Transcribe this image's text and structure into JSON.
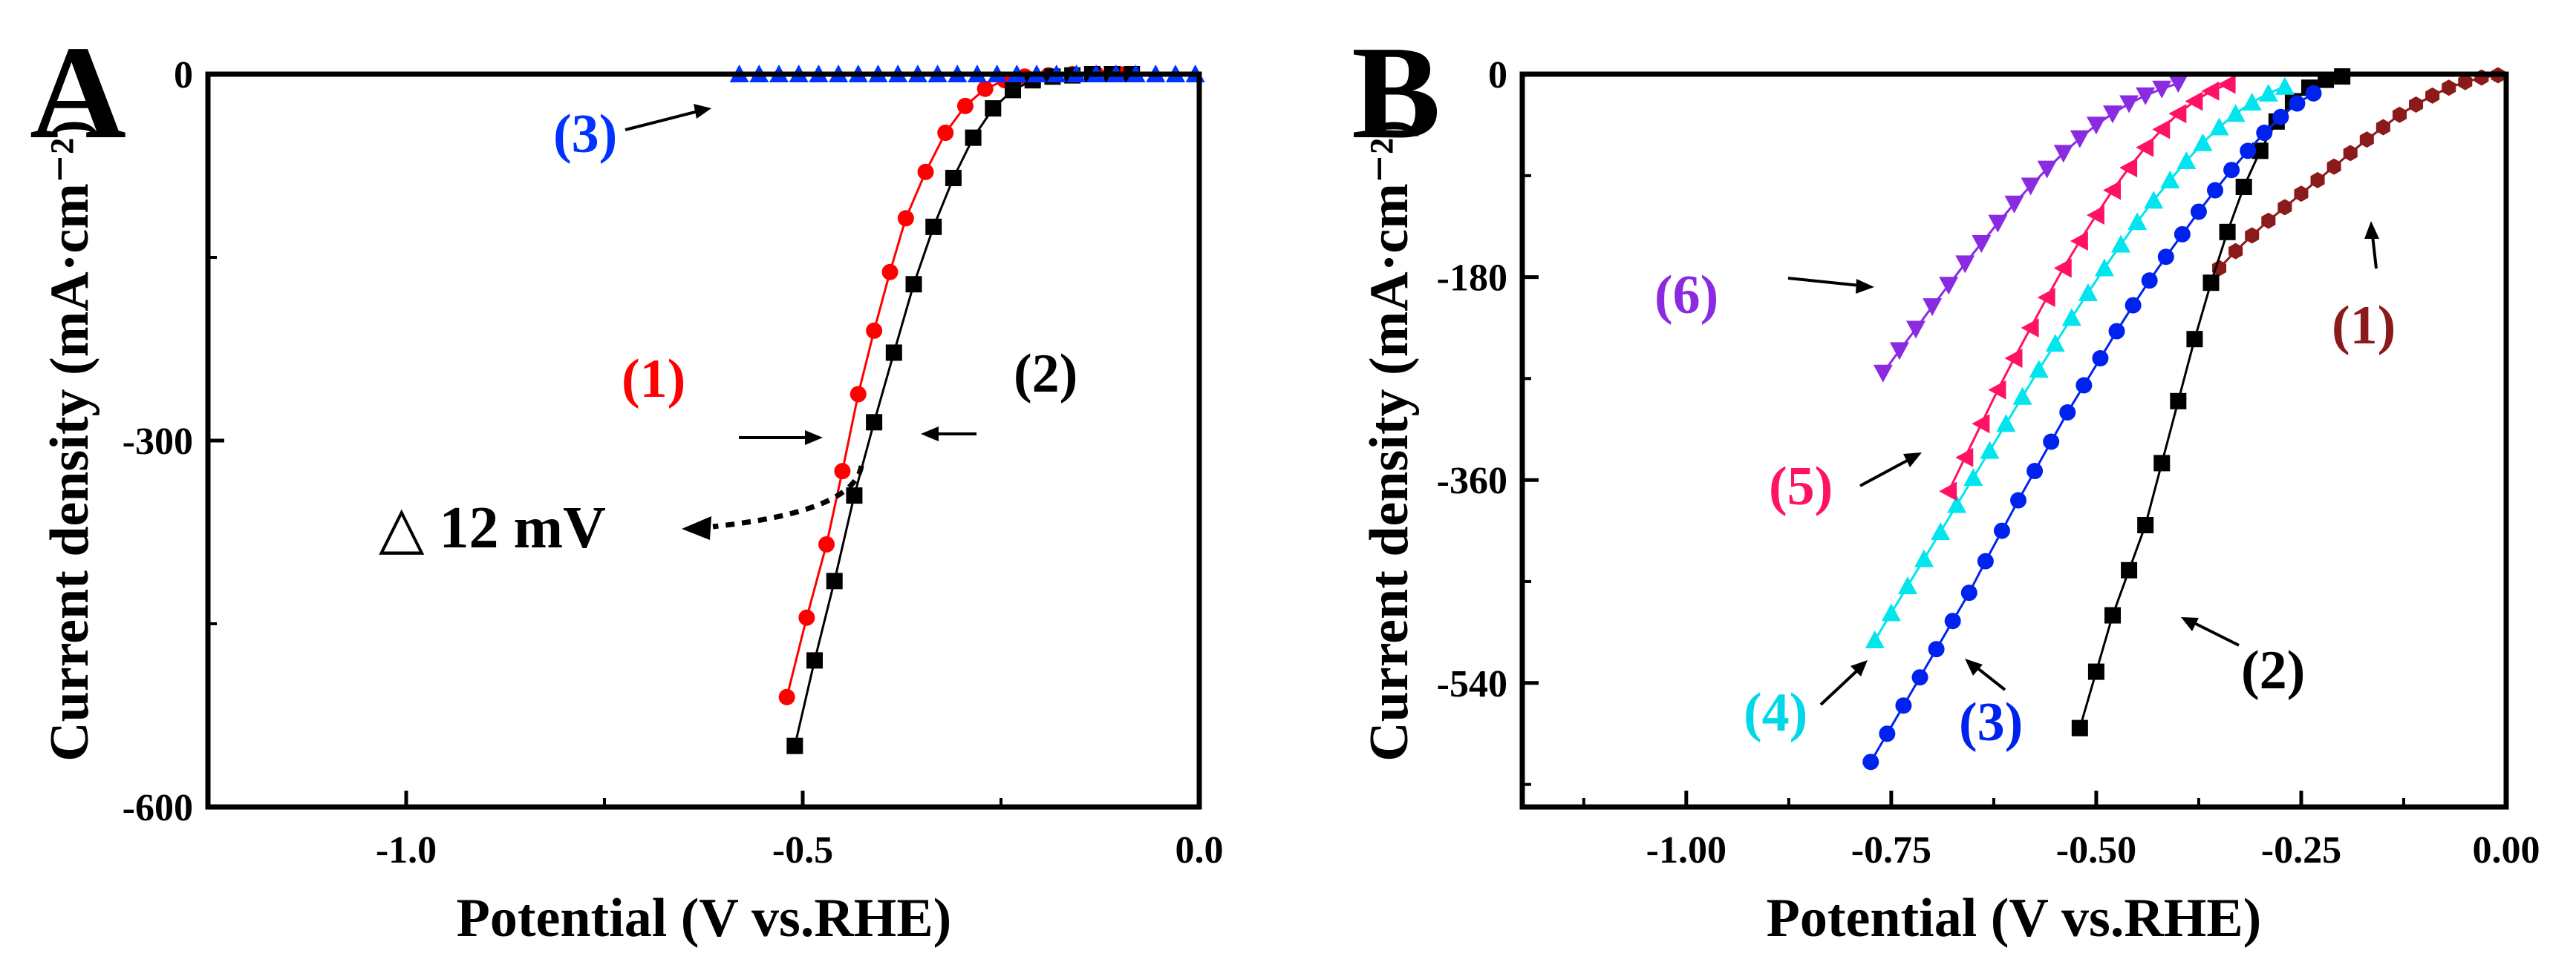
{
  "chart_data": [
    {
      "type": "line",
      "panel_label": "A",
      "xlabel": "Potential (V vs.RHE)",
      "ylabel": "Current density (mA·cm⁻²)",
      "xlim": [
        -1.25,
        0.0
      ],
      "ylim": [
        -600,
        0
      ],
      "xticks": [
        -1.0,
        -0.5,
        0.0
      ],
      "xtick_labels": [
        "-1.0",
        "-0.5",
        "0.0"
      ],
      "yticks": [
        0,
        -300,
        -600
      ],
      "ytick_labels": [
        "0",
        "-300",
        "-600"
      ],
      "series": [
        {
          "name": "(1)",
          "color": "#ff0000",
          "marker": "circle",
          "x": [
            -0.52,
            -0.495,
            -0.47,
            -0.45,
            -0.43,
            -0.41,
            -0.39,
            -0.37,
            -0.345,
            -0.32,
            -0.295,
            -0.27,
            -0.245,
            -0.22,
            -0.19,
            -0.16,
            -0.13,
            -0.1
          ],
          "y": [
            -510,
            -445,
            -385,
            -325,
            -262,
            -210,
            -162,
            -118,
            -80,
            -48,
            -26,
            -12,
            -5,
            -2,
            -1,
            0,
            0,
            0
          ]
        },
        {
          "name": "(2)",
          "color": "#000000",
          "marker": "square",
          "x": [
            -0.51,
            -0.485,
            -0.46,
            -0.435,
            -0.41,
            -0.385,
            -0.36,
            -0.335,
            -0.31,
            -0.285,
            -0.26,
            -0.235,
            -0.21,
            -0.185,
            -0.16,
            -0.135,
            -0.11,
            -0.085
          ],
          "y": [
            -550,
            -480,
            -415,
            -345,
            -285,
            -228,
            -172,
            -125,
            -85,
            -52,
            -28,
            -13,
            -5,
            -2,
            -1,
            0,
            0,
            0
          ]
        },
        {
          "name": "(3)",
          "color": "#0033ff",
          "marker": "triangle-up",
          "x": [
            -0.58,
            -0.555,
            -0.53,
            -0.505,
            -0.48,
            -0.455,
            -0.43,
            -0.405,
            -0.38,
            -0.355,
            -0.33,
            -0.305,
            -0.28,
            -0.255,
            -0.23,
            -0.205,
            -0.18,
            -0.155,
            -0.13,
            -0.105,
            -0.08,
            -0.055,
            -0.03,
            -0.005
          ],
          "y": [
            0,
            0,
            0,
            0,
            0,
            0,
            0,
            0,
            0,
            0,
            0,
            0,
            0,
            0,
            0,
            0,
            0,
            0,
            0,
            0,
            0,
            0,
            0,
            0
          ]
        }
      ],
      "annotations": [
        "(3)",
        "(1)",
        "(2)",
        "△ 12 mV"
      ]
    },
    {
      "type": "line",
      "panel_label": "B",
      "xlabel": "Potential (V vs.RHE)",
      "ylabel": "Current density (mA·cm⁻²)",
      "xlim": [
        -1.2,
        0.0
      ],
      "ylim": [
        -650,
        0
      ],
      "xticks": [
        -1.0,
        -0.75,
        -0.5,
        -0.25,
        0.0
      ],
      "xtick_labels": [
        "-1.00",
        "-0.75",
        "-0.50",
        "-0.25",
        "0.00"
      ],
      "yticks": [
        0,
        -180,
        -360,
        -540
      ],
      "ytick_labels": [
        "0",
        "-180",
        "-360",
        "-540"
      ],
      "series": [
        {
          "name": "(1)",
          "color": "#8b1a1a",
          "marker": "hexagon",
          "x": [
            -0.35,
            -0.33,
            -0.31,
            -0.29,
            -0.27,
            -0.25,
            -0.23,
            -0.21,
            -0.19,
            -0.17,
            -0.15,
            -0.13,
            -0.11,
            -0.09,
            -0.07,
            -0.05,
            -0.03,
            -0.01
          ],
          "y": [
            -172,
            -157,
            -143,
            -130,
            -118,
            -106,
            -94,
            -82,
            -70,
            -58,
            -47,
            -36,
            -27,
            -19,
            -12,
            -7,
            -3,
            -1
          ]
        },
        {
          "name": "(2)",
          "color": "#000000",
          "marker": "square",
          "x": [
            -0.52,
            -0.5,
            -0.48,
            -0.46,
            -0.44,
            -0.42,
            -0.4,
            -0.38,
            -0.36,
            -0.34,
            -0.32,
            -0.3,
            -0.28,
            -0.26,
            -0.24,
            -0.22,
            -0.2
          ],
          "y": [
            -580,
            -530,
            -480,
            -440,
            -400,
            -345,
            -290,
            -235,
            -185,
            -140,
            -100,
            -68,
            -42,
            -24,
            -12,
            -5,
            -2
          ]
        },
        {
          "name": "(3)",
          "color": "#0022ee",
          "marker": "circle",
          "x": [
            -0.775,
            -0.755,
            -0.735,
            -0.715,
            -0.695,
            -0.675,
            -0.655,
            -0.635,
            -0.615,
            -0.595,
            -0.575,
            -0.555,
            -0.535,
            -0.515,
            -0.495,
            -0.475,
            -0.455,
            -0.435,
            -0.415,
            -0.395,
            -0.375,
            -0.355,
            -0.335,
            -0.315,
            -0.295,
            -0.275,
            -0.255,
            -0.235
          ],
          "y": [
            -610,
            -585,
            -560,
            -535,
            -510,
            -485,
            -460,
            -432,
            -405,
            -378,
            -352,
            -326,
            -300,
            -276,
            -252,
            -228,
            -205,
            -183,
            -162,
            -142,
            -122,
            -103,
            -85,
            -68,
            -52,
            -38,
            -26,
            -17
          ]
        },
        {
          "name": "(4)",
          "color": "#00e5ee",
          "marker": "triangle-up",
          "x": [
            -0.77,
            -0.75,
            -0.73,
            -0.71,
            -0.69,
            -0.67,
            -0.65,
            -0.63,
            -0.61,
            -0.59,
            -0.57,
            -0.55,
            -0.53,
            -0.51,
            -0.49,
            -0.47,
            -0.45,
            -0.43,
            -0.41,
            -0.39,
            -0.37,
            -0.35,
            -0.33,
            -0.31,
            -0.29,
            -0.27
          ],
          "y": [
            -502,
            -478,
            -454,
            -430,
            -406,
            -382,
            -358,
            -334,
            -310,
            -286,
            -262,
            -239,
            -216,
            -194,
            -172,
            -151,
            -131,
            -112,
            -94,
            -77,
            -61,
            -47,
            -35,
            -25,
            -17,
            -11
          ]
        },
        {
          "name": "(5)",
          "color": "#ff1166",
          "marker": "triangle-left",
          "x": [
            -0.68,
            -0.66,
            -0.64,
            -0.62,
            -0.6,
            -0.58,
            -0.56,
            -0.54,
            -0.52,
            -0.5,
            -0.48,
            -0.46,
            -0.44,
            -0.42,
            -0.4,
            -0.38,
            -0.36,
            -0.34
          ],
          "y": [
            -370,
            -340,
            -310,
            -280,
            -252,
            -225,
            -198,
            -172,
            -148,
            -125,
            -103,
            -83,
            -65,
            -49,
            -35,
            -24,
            -15,
            -9
          ]
        },
        {
          "name": "(6)",
          "color": "#8a2be2",
          "marker": "triangle-down",
          "x": [
            -0.76,
            -0.74,
            -0.72,
            -0.7,
            -0.68,
            -0.66,
            -0.64,
            -0.62,
            -0.6,
            -0.58,
            -0.56,
            -0.54,
            -0.52,
            -0.5,
            -0.48,
            -0.46,
            -0.44,
            -0.42,
            -0.4
          ],
          "y": [
            -265,
            -245,
            -226,
            -206,
            -187,
            -168,
            -150,
            -132,
            -115,
            -99,
            -84,
            -70,
            -57,
            -45,
            -35,
            -26,
            -19,
            -13,
            -8
          ]
        }
      ],
      "annotations": [
        "(6)",
        "(1)",
        "(5)",
        "(4)",
        "(3)",
        "(2)"
      ]
    }
  ]
}
